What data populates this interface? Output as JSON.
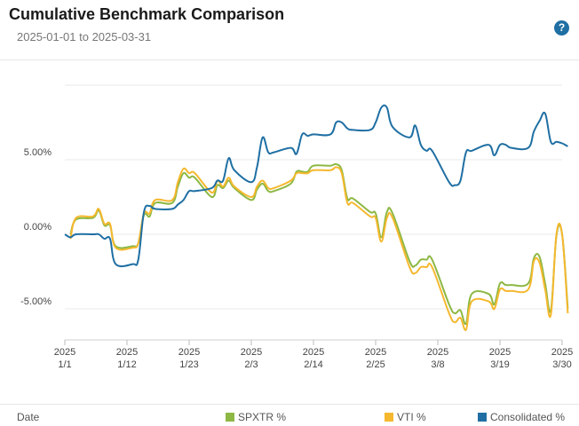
{
  "header": {
    "title": "Cumulative Benchmark Comparison",
    "subtitle": "2025-01-01 to 2025-03-31",
    "help_icon": "question-icon",
    "help_glyph": "?"
  },
  "footer": {
    "x_field_label": "Date",
    "legend": [
      {
        "label": "SPXTR %",
        "color": "#8db843"
      },
      {
        "label": "VTI %",
        "color": "#f5b82e"
      },
      {
        "label": "Consolidated %",
        "color": "#1f6fa3"
      }
    ]
  },
  "chart_data": {
    "type": "line",
    "ylim": [
      -7.2,
      10.2
    ],
    "xlim": [
      "2025-01-01",
      "2025-03-31"
    ],
    "y_ticks": [
      {
        "value": 5,
        "label": "5.00%"
      },
      {
        "value": 0,
        "label": "0.00%"
      },
      {
        "value": -5,
        "label": "-5.00%"
      }
    ],
    "x_ticks": [
      {
        "date": "2025-01-01",
        "year": "2025",
        "label": "1/1"
      },
      {
        "date": "2025-01-12",
        "year": "2025",
        "label": "1/12"
      },
      {
        "date": "2025-01-23",
        "year": "2025",
        "label": "1/23"
      },
      {
        "date": "2025-02-03",
        "year": "2025",
        "label": "2/3"
      },
      {
        "date": "2025-02-14",
        "year": "2025",
        "label": "2/14"
      },
      {
        "date": "2025-02-25",
        "year": "2025",
        "label": "2/25"
      },
      {
        "date": "2025-03-08",
        "year": "2025",
        "label": "3/8"
      },
      {
        "date": "2025-03-19",
        "year": "2025",
        "label": "3/19"
      },
      {
        "date": "2025-03-30",
        "year": "2025",
        "label": "3/30"
      }
    ],
    "grid": true,
    "series": [
      {
        "name": "SPXTR %",
        "color": "#8db843",
        "points": [
          [
            "2025-01-02",
            0.0
          ],
          [
            "2025-01-03",
            1.0
          ],
          [
            "2025-01-06",
            1.1
          ],
          [
            "2025-01-07",
            1.6
          ],
          [
            "2025-01-08",
            0.6
          ],
          [
            "2025-01-09",
            0.6
          ],
          [
            "2025-01-10",
            -0.8
          ],
          [
            "2025-01-13",
            -0.8
          ],
          [
            "2025-01-14",
            -0.6
          ],
          [
            "2025-01-15",
            1.3
          ],
          [
            "2025-01-16",
            1.2
          ],
          [
            "2025-01-17",
            2.1
          ],
          [
            "2025-01-20",
            2.1
          ],
          [
            "2025-01-21",
            3.2
          ],
          [
            "2025-01-22",
            4.1
          ],
          [
            "2025-01-23",
            3.8
          ],
          [
            "2025-01-24",
            3.8
          ],
          [
            "2025-01-27",
            2.5
          ],
          [
            "2025-01-28",
            3.3
          ],
          [
            "2025-01-29",
            3.1
          ],
          [
            "2025-01-30",
            3.6
          ],
          [
            "2025-01-31",
            3.1
          ],
          [
            "2025-02-03",
            2.3
          ],
          [
            "2025-02-04",
            3.0
          ],
          [
            "2025-02-05",
            3.4
          ],
          [
            "2025-02-06",
            2.9
          ],
          [
            "2025-02-07",
            2.9
          ],
          [
            "2025-02-10",
            3.4
          ],
          [
            "2025-02-11",
            4.2
          ],
          [
            "2025-02-12",
            4.2
          ],
          [
            "2025-02-13",
            4.2
          ],
          [
            "2025-02-14",
            4.6
          ],
          [
            "2025-02-17",
            4.6
          ],
          [
            "2025-02-18",
            4.7
          ],
          [
            "2025-02-19",
            4.3
          ],
          [
            "2025-02-20",
            2.4
          ],
          [
            "2025-02-21",
            2.4
          ],
          [
            "2025-02-24",
            1.5
          ],
          [
            "2025-02-25",
            1.4
          ],
          [
            "2025-02-26",
            -0.2
          ],
          [
            "2025-02-27",
            1.5
          ],
          [
            "2025-02-28",
            1.4
          ],
          [
            "2025-03-03",
            -1.8
          ],
          [
            "2025-03-04",
            -2.1
          ],
          [
            "2025-03-05",
            -1.7
          ],
          [
            "2025-03-06",
            -1.7
          ],
          [
            "2025-03-07",
            -1.7
          ],
          [
            "2025-03-10",
            -4.7
          ],
          [
            "2025-03-11",
            -5.3
          ],
          [
            "2025-03-12",
            -5.1
          ],
          [
            "2025-03-13",
            -6.0
          ],
          [
            "2025-03-14",
            -4.0
          ],
          [
            "2025-03-17",
            -4.0
          ],
          [
            "2025-03-18",
            -4.7
          ],
          [
            "2025-03-19",
            -3.3
          ],
          [
            "2025-03-20",
            -3.4
          ],
          [
            "2025-03-21",
            -3.4
          ],
          [
            "2025-03-24",
            -3.3
          ],
          [
            "2025-03-25",
            -1.6
          ],
          [
            "2025-03-26",
            -1.5
          ],
          [
            "2025-03-27",
            -3.3
          ],
          [
            "2025-03-28",
            -5.1
          ],
          [
            "2025-03-29",
            -0.1
          ],
          [
            "2025-03-30",
            0.0
          ],
          [
            "2025-03-31",
            -5.0
          ]
        ]
      },
      {
        "name": "VTI %",
        "color": "#f5b82e",
        "points": [
          [
            "2025-01-02",
            -0.3
          ],
          [
            "2025-01-03",
            1.1
          ],
          [
            "2025-01-06",
            1.2
          ],
          [
            "2025-01-07",
            1.7
          ],
          [
            "2025-01-08",
            0.7
          ],
          [
            "2025-01-09",
            0.7
          ],
          [
            "2025-01-10",
            -0.9
          ],
          [
            "2025-01-13",
            -0.9
          ],
          [
            "2025-01-14",
            -0.6
          ],
          [
            "2025-01-15",
            1.4
          ],
          [
            "2025-01-16",
            1.4
          ],
          [
            "2025-01-17",
            2.3
          ],
          [
            "2025-01-20",
            2.3
          ],
          [
            "2025-01-21",
            3.5
          ],
          [
            "2025-01-22",
            4.4
          ],
          [
            "2025-01-23",
            4.1
          ],
          [
            "2025-01-24",
            4.1
          ],
          [
            "2025-01-27",
            2.8
          ],
          [
            "2025-01-28",
            3.6
          ],
          [
            "2025-01-29",
            3.2
          ],
          [
            "2025-01-30",
            3.8
          ],
          [
            "2025-01-31",
            3.2
          ],
          [
            "2025-02-03",
            2.5
          ],
          [
            "2025-02-04",
            3.2
          ],
          [
            "2025-02-05",
            3.6
          ],
          [
            "2025-02-06",
            3.1
          ],
          [
            "2025-02-07",
            3.1
          ],
          [
            "2025-02-10",
            3.6
          ],
          [
            "2025-02-11",
            4.1
          ],
          [
            "2025-02-12",
            4.1
          ],
          [
            "2025-02-13",
            4.1
          ],
          [
            "2025-02-14",
            4.3
          ],
          [
            "2025-02-17",
            4.3
          ],
          [
            "2025-02-18",
            4.5
          ],
          [
            "2025-02-19",
            4.1
          ],
          [
            "2025-02-20",
            2.1
          ],
          [
            "2025-02-21",
            2.1
          ],
          [
            "2025-02-24",
            1.2
          ],
          [
            "2025-02-25",
            1.1
          ],
          [
            "2025-02-26",
            -0.5
          ],
          [
            "2025-02-27",
            1.1
          ],
          [
            "2025-02-28",
            1.1
          ],
          [
            "2025-03-03",
            -2.2
          ],
          [
            "2025-03-04",
            -2.6
          ],
          [
            "2025-03-05",
            -2.2
          ],
          [
            "2025-03-06",
            -2.2
          ],
          [
            "2025-03-07",
            -2.2
          ],
          [
            "2025-03-10",
            -5.3
          ],
          [
            "2025-03-11",
            -5.9
          ],
          [
            "2025-03-12",
            -5.6
          ],
          [
            "2025-03-13",
            -6.4
          ],
          [
            "2025-03-14",
            -4.5
          ],
          [
            "2025-03-17",
            -4.5
          ],
          [
            "2025-03-18",
            -5.0
          ],
          [
            "2025-03-19",
            -3.7
          ],
          [
            "2025-03-20",
            -3.8
          ],
          [
            "2025-03-21",
            -3.8
          ],
          [
            "2025-03-24",
            -3.7
          ],
          [
            "2025-03-25",
            -1.8
          ],
          [
            "2025-03-26",
            -1.9
          ],
          [
            "2025-03-27",
            -3.7
          ],
          [
            "2025-03-28",
            -5.4
          ],
          [
            "2025-03-29",
            0.0
          ],
          [
            "2025-03-30",
            0.0
          ],
          [
            "2025-03-31",
            -5.3
          ]
        ]
      },
      {
        "name": "Consolidated %",
        "color": "#1f6fa3",
        "points": [
          [
            "2025-01-01",
            0.0
          ],
          [
            "2025-01-02",
            -0.2
          ],
          [
            "2025-01-03",
            0.0
          ],
          [
            "2025-01-06",
            0.0
          ],
          [
            "2025-01-07",
            0.0
          ],
          [
            "2025-01-08",
            -0.3
          ],
          [
            "2025-01-09",
            -0.3
          ],
          [
            "2025-01-10",
            -2.0
          ],
          [
            "2025-01-13",
            -2.0
          ],
          [
            "2025-01-14",
            -1.7
          ],
          [
            "2025-01-15",
            1.5
          ],
          [
            "2025-01-16",
            1.9
          ],
          [
            "2025-01-17",
            1.7
          ],
          [
            "2025-01-20",
            1.7
          ],
          [
            "2025-01-21",
            2.0
          ],
          [
            "2025-01-22",
            2.3
          ],
          [
            "2025-01-23",
            2.9
          ],
          [
            "2025-01-24",
            2.9
          ],
          [
            "2025-01-27",
            3.1
          ],
          [
            "2025-01-28",
            3.6
          ],
          [
            "2025-01-29",
            3.6
          ],
          [
            "2025-01-30",
            5.1
          ],
          [
            "2025-01-31",
            4.3
          ],
          [
            "2025-02-03",
            3.5
          ],
          [
            "2025-02-04",
            4.5
          ],
          [
            "2025-02-05",
            6.5
          ],
          [
            "2025-02-06",
            5.5
          ],
          [
            "2025-02-07",
            5.5
          ],
          [
            "2025-02-10",
            5.8
          ],
          [
            "2025-02-11",
            5.4
          ],
          [
            "2025-02-12",
            6.7
          ],
          [
            "2025-02-13",
            6.6
          ],
          [
            "2025-02-14",
            6.7
          ],
          [
            "2025-02-17",
            6.7
          ],
          [
            "2025-02-18",
            7.5
          ],
          [
            "2025-02-19",
            7.5
          ],
          [
            "2025-02-20",
            7.1
          ],
          [
            "2025-02-21",
            7.0
          ],
          [
            "2025-02-24",
            7.0
          ],
          [
            "2025-02-25",
            7.5
          ],
          [
            "2025-02-26",
            8.5
          ],
          [
            "2025-02-27",
            8.5
          ],
          [
            "2025-02-28",
            7.2
          ],
          [
            "2025-03-03",
            6.5
          ],
          [
            "2025-03-04",
            7.3
          ],
          [
            "2025-03-05",
            6.0
          ],
          [
            "2025-03-06",
            5.6
          ],
          [
            "2025-03-07",
            5.6
          ],
          [
            "2025-03-10",
            3.5
          ],
          [
            "2025-03-11",
            3.3
          ],
          [
            "2025-03-12",
            3.6
          ],
          [
            "2025-03-13",
            5.5
          ],
          [
            "2025-03-14",
            5.6
          ],
          [
            "2025-03-17",
            6.0
          ],
          [
            "2025-03-18",
            5.3
          ],
          [
            "2025-03-19",
            6.0
          ],
          [
            "2025-03-20",
            6.0
          ],
          [
            "2025-03-21",
            5.8
          ],
          [
            "2025-03-24",
            5.8
          ],
          [
            "2025-03-25",
            6.9
          ],
          [
            "2025-03-26",
            7.6
          ],
          [
            "2025-03-27",
            8.1
          ],
          [
            "2025-03-28",
            6.2
          ],
          [
            "2025-03-29",
            6.2
          ],
          [
            "2025-03-30",
            6.1
          ],
          [
            "2025-03-31",
            5.9
          ]
        ]
      }
    ]
  }
}
